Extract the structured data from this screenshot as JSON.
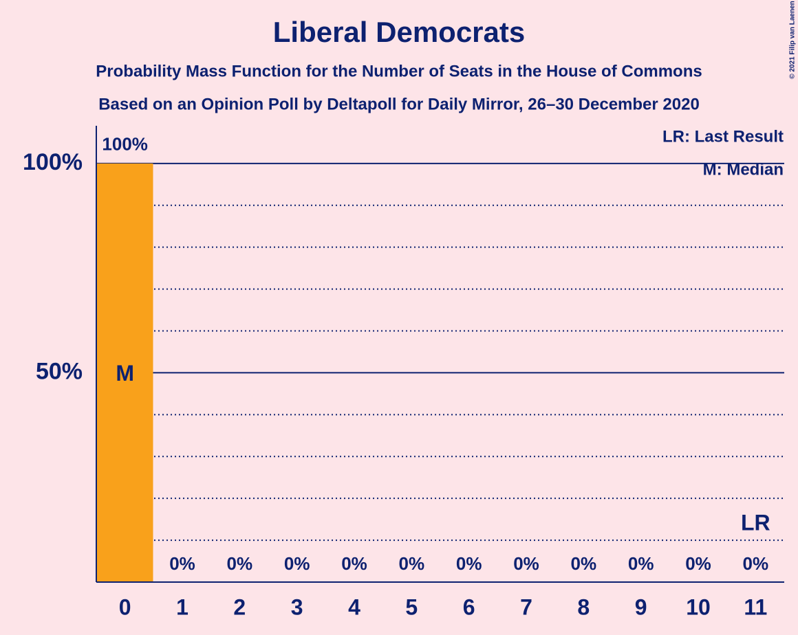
{
  "chart_data": {
    "type": "bar",
    "title": "Liberal Democrats",
    "subtitle": "Probability Mass Function for the Number of Seats in the House of Commons",
    "subtitle2": "Based on an Opinion Poll by Deltapoll for Daily Mirror, 26–30 December 2020",
    "categories": [
      "0",
      "1",
      "2",
      "3",
      "4",
      "5",
      "6",
      "7",
      "8",
      "9",
      "10",
      "11"
    ],
    "values": [
      100,
      0,
      0,
      0,
      0,
      0,
      0,
      0,
      0,
      0,
      0,
      0
    ],
    "value_labels": [
      "100%",
      "0%",
      "0%",
      "0%",
      "0%",
      "0%",
      "0%",
      "0%",
      "0%",
      "0%",
      "0%",
      "0%"
    ],
    "color": "#f9a11b",
    "ylim": [
      0,
      109
    ],
    "yticks": [
      {
        "value": 50,
        "label": "50%"
      },
      {
        "value": 100,
        "label": "100%"
      }
    ],
    "minor_yticks": [
      10,
      20,
      30,
      40,
      60,
      70,
      80,
      90
    ],
    "grid": true,
    "markers": [
      {
        "label": "M",
        "category": 0
      },
      {
        "label": "LR",
        "category": 11
      }
    ],
    "legend": [
      "LR: Last Result",
      "M: Median"
    ],
    "copyright": "© 2021 Filip van Laenen"
  }
}
